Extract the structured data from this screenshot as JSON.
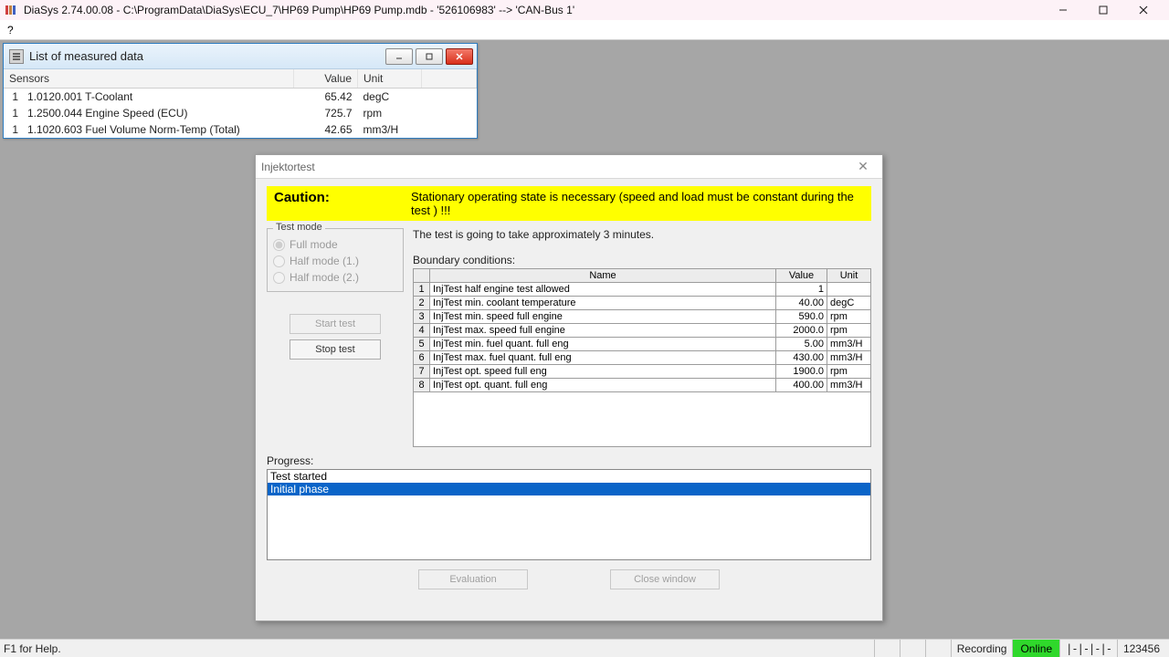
{
  "app": {
    "title": "DiaSys 2.74.00.08 - C:\\ProgramData\\DiaSys\\ECU_7\\HP69 Pump\\HP69 Pump.mdb - '526106983' --> 'CAN-Bus 1'",
    "help_menu": "?"
  },
  "measured": {
    "title": "List of measured data",
    "columns": {
      "sensors": "Sensors",
      "value": "Value",
      "unit": "Unit"
    },
    "rows": [
      {
        "idx": "1",
        "sensor": "1.0120.001 T-Coolant",
        "value": "65.42",
        "unit": "degC"
      },
      {
        "idx": "1",
        "sensor": "1.2500.044 Engine Speed (ECU)",
        "value": "725.7",
        "unit": "rpm"
      },
      {
        "idx": "1",
        "sensor": "1.1020.603 Fuel Volume Norm-Temp (Total)",
        "value": "42.65",
        "unit": "mm3/H"
      }
    ]
  },
  "inj": {
    "title": "Injektortest",
    "caution_label": "Caution:",
    "caution_msg": "Stationary operating state is necessary (speed and load must be constant during the test ) !!!",
    "info": "The test is going to take approximately 3 minutes.",
    "testmode_legend": "Test mode",
    "radios": {
      "full": "Full mode",
      "half1": "Half mode (1.)",
      "half2": "Half mode (2.)"
    },
    "buttons": {
      "start": "Start test",
      "stop": "Stop test",
      "eval": "Evaluation",
      "close": "Close window"
    },
    "boundary_label": "Boundary conditions:",
    "boundary_cols": {
      "name": "Name",
      "value": "Value",
      "unit": "Unit"
    },
    "boundary": [
      {
        "n": "1",
        "name": "InjTest half engine test allowed",
        "value": "1",
        "unit": ""
      },
      {
        "n": "2",
        "name": "InjTest min. coolant temperature",
        "value": "40.00",
        "unit": "degC"
      },
      {
        "n": "3",
        "name": "InjTest min. speed full engine",
        "value": "590.0",
        "unit": "rpm"
      },
      {
        "n": "4",
        "name": "InjTest max. speed full engine",
        "value": "2000.0",
        "unit": "rpm"
      },
      {
        "n": "5",
        "name": "InjTest min. fuel quant. full eng",
        "value": "5.00",
        "unit": "mm3/H"
      },
      {
        "n": "6",
        "name": "InjTest max. fuel quant. full eng",
        "value": "430.00",
        "unit": "mm3/H"
      },
      {
        "n": "7",
        "name": "InjTest opt. speed full eng",
        "value": "1900.0",
        "unit": "rpm"
      },
      {
        "n": "8",
        "name": "InjTest opt. quant. full eng",
        "value": "400.00",
        "unit": "mm3/H"
      }
    ],
    "progress_label": "Progress:",
    "progress": [
      {
        "text": "Test started",
        "selected": false
      },
      {
        "text": "Initial phase",
        "selected": true
      }
    ]
  },
  "status": {
    "help": "F1 for Help.",
    "recording": "Recording",
    "online": "Online",
    "dashes": "|-|-|-|-",
    "counter": "123456"
  },
  "colors": {
    "caution_bg": "#ffff00",
    "selection_bg": "#0a64c8",
    "online_bg": "#2fd82b"
  }
}
